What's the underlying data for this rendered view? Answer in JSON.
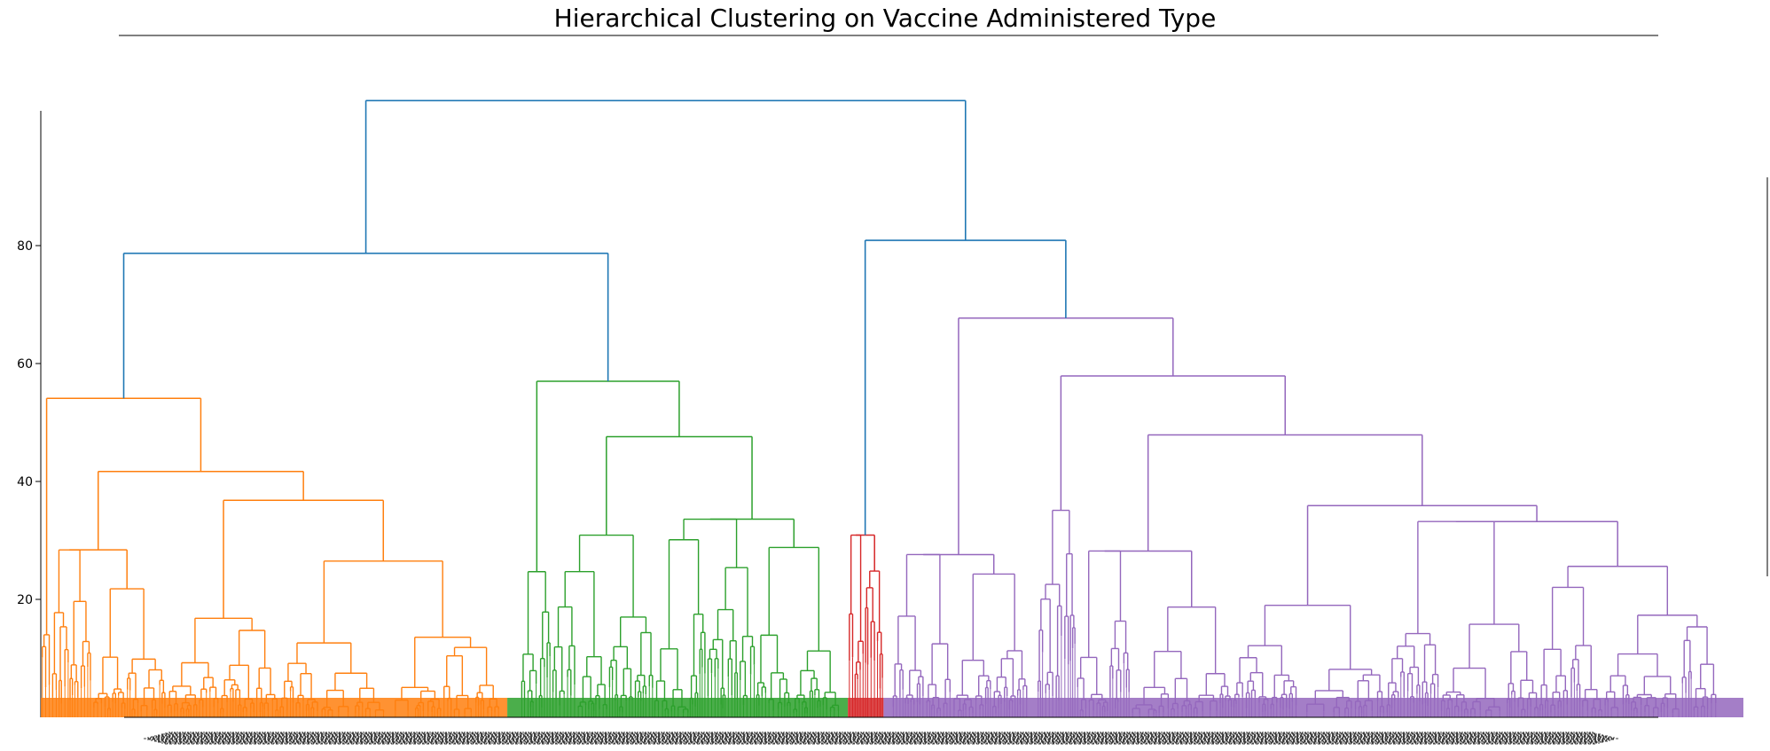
{
  "chart_data": {
    "type": "dendrogram",
    "title": "Hierarchical Clustering on Vaccine Administered Type",
    "xlabel": "",
    "ylabel": "",
    "ylim": [
      0,
      110
    ],
    "y_ticks": [
      20,
      40,
      60,
      80
    ],
    "y_tick_labels": [
      "20",
      "40",
      "60",
      "80"
    ],
    "grid": false,
    "colors": {
      "root": "#1f77b4",
      "cluster_1": "#ff7f0e",
      "cluster_2": "#2ca02c",
      "cluster_3": "#d62728",
      "cluster_4": "#9467bd"
    },
    "merge_heights": {
      "root": 104.6,
      "left_branch": 78.7,
      "right_branch": 80.9,
      "cluster_1_top": 54.1,
      "cluster_2_top": 57.0,
      "cluster_3_top": 30.9,
      "cluster_4_top": 67.7
    },
    "clusters": [
      {
        "name": "cluster_1",
        "color": "#ff7f0e",
        "leaf_range": [
          0,
          0.274
        ],
        "top": 54.1
      },
      {
        "name": "cluster_2",
        "color": "#2ca02c",
        "leaf_range": [
          0.274,
          0.474
        ],
        "top": 57.0
      },
      {
        "name": "cluster_3",
        "color": "#d62728",
        "leaf_range": [
          0.474,
          0.495
        ],
        "top": 30.9
      },
      {
        "name": "cluster_4",
        "color": "#9467bd",
        "leaf_range": [
          0.495,
          1.0
        ],
        "top": 67.7
      }
    ]
  }
}
